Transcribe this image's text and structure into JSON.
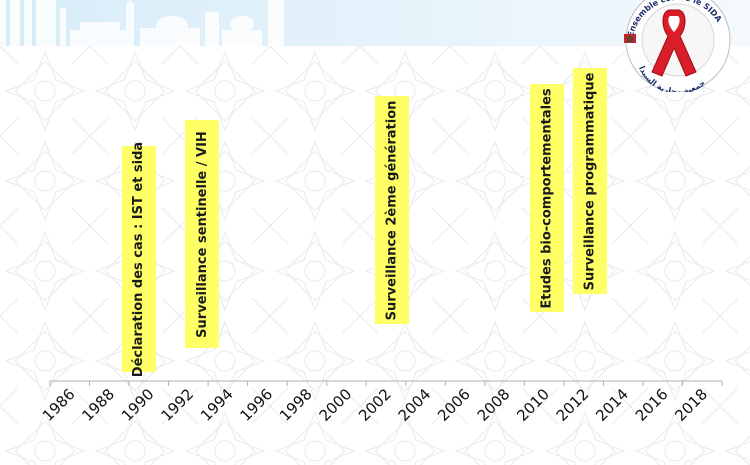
{
  "timeline": {
    "years": [
      "1986",
      "1988",
      "1990",
      "1992",
      "1994",
      "1996",
      "1998",
      "2000",
      "2002",
      "2004",
      "2006",
      "2008",
      "2010",
      "2012",
      "2014",
      "2016",
      "2018"
    ],
    "events": [
      {
        "label": "Déclaration des cas : IST et sida",
        "year": 1990
      },
      {
        "label": "Surveillance sentinelle / VIH",
        "year": 1993
      },
      {
        "label": "Surveillance 2ème génération",
        "year": 2002
      },
      {
        "label": "Etudes bio-comportementales",
        "year": 2010
      },
      {
        "label": "Surveillance programmatique",
        "year": 2012
      }
    ]
  },
  "logo": {
    "icon": "red-ribbon-icon",
    "ring_text_top": "Ensemble contre le SIDA",
    "ring_text_bottom": "جمعية محاربة السيدا"
  },
  "colors": {
    "event_box": "#ffff66",
    "banner": "#d7ecf8",
    "axis": "#b0b0b0",
    "ribbon": "#d91e2a"
  }
}
